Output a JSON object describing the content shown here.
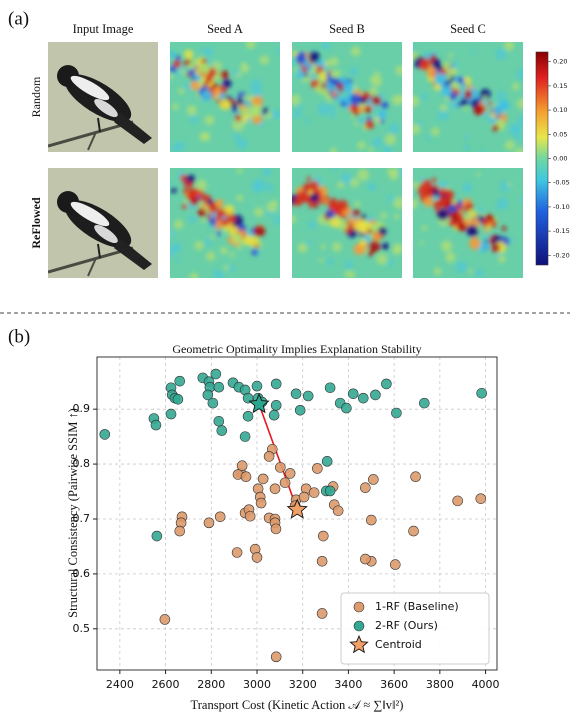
{
  "panel_a": {
    "label": "(a)",
    "columns": [
      "Input Image",
      "Seed A",
      "Seed B",
      "Seed C"
    ],
    "rows": [
      "Random",
      "ReFlowed"
    ],
    "colorbar": {
      "lim": [
        -0.22,
        0.22
      ],
      "ticks": [
        {
          "value": 0.2,
          "label": "0.20"
        },
        {
          "value": 0.15,
          "label": "0.15"
        },
        {
          "value": 0.1,
          "label": "0.10"
        },
        {
          "value": 0.05,
          "label": "0.05"
        },
        {
          "value": 0,
          "label": "0.00"
        },
        {
          "value": -0.05,
          "label": "-0.05"
        },
        {
          "value": -0.1,
          "label": "-0.10"
        },
        {
          "value": -0.15,
          "label": "-0.15"
        },
        {
          "value": -0.2,
          "label": "-0.20"
        }
      ]
    }
  },
  "chart_data": {
    "type": "scatter",
    "panel_label": "(b)",
    "title": "Geometric Optimality Implies Explanation Stability",
    "x_label": "Transport Cost (Kinetic Action 𝒜 ≈ ∑‖v‖²)",
    "y_label": "Structural Consistency (Pairwise SSIM ↑)",
    "xlim": [
      2300,
      4050
    ],
    "ylim": [
      0.425,
      0.995
    ],
    "xticks": [
      2400,
      2600,
      2800,
      3000,
      3200,
      3400,
      3600,
      3800,
      4000
    ],
    "yticks": [
      0.5,
      0.6,
      0.7,
      0.8,
      0.9
    ],
    "grid": true,
    "legend": "lower right",
    "series": [
      {
        "name": "1-RF (Baseline)",
        "color": "#dd9a6c",
        "marker": "circle",
        "x": [
          3067,
          3053,
          3102,
          2930,
          2917,
          2952,
          2935,
          3027,
          3123,
          3145,
          3264,
          3333,
          3215,
          3250,
          3474,
          3694,
          3509,
          3171,
          3005,
          3079,
          3014,
          2948,
          2965,
          2970,
          3053,
          3018,
          3079,
          3338,
          3355,
          3500,
          3878,
          3979,
          2672,
          2839,
          2790,
          2668,
          2662,
          3079,
          3083,
          3290,
          3500,
          3605,
          3474,
          3285,
          3685,
          2992,
          3000,
          2913,
          2597,
          3285,
          3084,
          3167,
          3206
        ],
        "values": [
          0.827,
          0.814,
          0.794,
          0.783,
          0.781,
          0.777,
          0.797,
          0.773,
          0.766,
          0.783,
          0.792,
          0.759,
          0.755,
          0.748,
          0.757,
          0.777,
          0.772,
          0.735,
          0.755,
          0.755,
          0.74,
          0.711,
          0.717,
          0.705,
          0.702,
          0.729,
          0.7,
          0.726,
          0.715,
          0.698,
          0.733,
          0.737,
          0.704,
          0.704,
          0.693,
          0.693,
          0.678,
          0.693,
          0.682,
          0.669,
          0.623,
          0.617,
          0.627,
          0.623,
          0.678,
          0.645,
          0.63,
          0.639,
          0.517,
          0.528,
          0.449,
          0.724,
          0.74
        ]
      },
      {
        "name": "2-RF (Ours)",
        "color": "#33a994",
        "marker": "circle",
        "x": [
          2334,
          2549,
          2558,
          2562,
          2624,
          2624,
          2629,
          2641,
          2654,
          2662,
          2763,
          2820,
          2790,
          2794,
          2785,
          2807,
          2833,
          2833,
          2846,
          2895,
          2921,
          2948,
          2961,
          2961,
          2948,
          3000,
          3005,
          3022,
          3084,
          3084,
          3075,
          3189,
          3224,
          3171,
          3320,
          3364,
          3391,
          3421,
          3465,
          3518,
          3566,
          3610,
          3732,
          3983,
          3307,
          3303,
          3320
        ],
        "values": [
          0.854,
          0.883,
          0.871,
          0.669,
          0.891,
          0.939,
          0.926,
          0.92,
          0.918,
          0.951,
          0.957,
          0.964,
          0.95,
          0.94,
          0.926,
          0.911,
          0.94,
          0.878,
          0.861,
          0.948,
          0.94,
          0.935,
          0.92,
          0.887,
          0.85,
          0.942,
          0.92,
          0.913,
          0.946,
          0.907,
          0.889,
          0.898,
          0.924,
          0.928,
          0.939,
          0.911,
          0.902,
          0.928,
          0.92,
          0.926,
          0.946,
          0.893,
          0.911,
          0.929,
          0.805,
          0.751,
          0.751
        ]
      },
      {
        "name": "Centroid",
        "color": "#f2a065",
        "marker": "star",
        "point_colors": [
          "#2aa58f",
          "#f2a065"
        ],
        "x": [
          3009,
          3176
        ],
        "values": [
          0.909,
          0.717
        ]
      }
    ]
  }
}
